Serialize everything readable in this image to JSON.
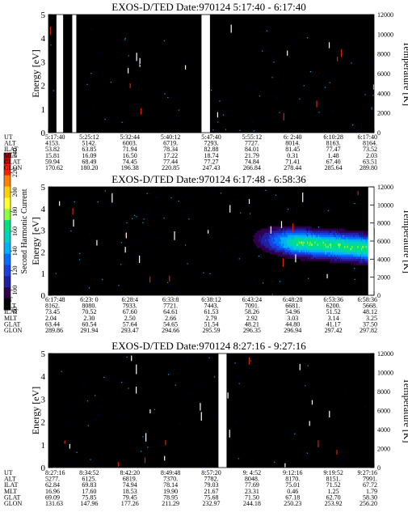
{
  "figure": {
    "colorbar": {
      "label": "Second Harmonic Current",
      "ticks": [
        "240",
        "220",
        "200",
        "180",
        "160",
        "140",
        "120",
        "100",
        "80"
      ],
      "colors": [
        "#c80000",
        "#ff2000",
        "#ff8000",
        "#ffd000",
        "#ffff30",
        "#90ff40",
        "#00e080",
        "#00d0c0",
        "#00b0ff",
        "#0070ff",
        "#1a3fe0",
        "#2020a0",
        "#300050",
        "#000000"
      ]
    }
  },
  "chart_data": [
    {
      "type": "heatmap",
      "title": "EXOS-D/TED",
      "date_text": "Date:970124",
      "time_range": "5:17:40 - 6:17:40",
      "ylabel": "Energy [eV]",
      "ylabel2": "Temperature [K]",
      "ylim": [
        0,
        5
      ],
      "ylim2": [
        0,
        12000
      ],
      "yticks": [
        "0",
        "1",
        "2",
        "3",
        "4",
        "5"
      ],
      "yticks2": [
        "0",
        "2000",
        "4000",
        "6000",
        "8000",
        "10000",
        "12000"
      ],
      "background_level": 75,
      "feature": "none",
      "gaps": [
        [
          0.0245,
          0.045
        ],
        [
          0.073,
          0.0855
        ],
        [
          0.47,
          0.496
        ]
      ],
      "table": {
        "labels": [
          "UT",
          "ALT",
          "ILAT",
          "MLT",
          "GLAT",
          "GLON"
        ],
        "columns": [
          [
            "5:17:40",
            "4153.",
            "53.82",
            "15.81",
            "59.94",
            "170.62"
          ],
          [
            "5:25:12",
            "5142.",
            "63.85",
            "16.09",
            "68.49",
            "180.20"
          ],
          [
            "5:32:44",
            "6003.",
            "71.94",
            "16.50",
            "74.45",
            "196.38"
          ],
          [
            "5:40:12",
            "6719.",
            "78.34",
            "17.22",
            "77.44",
            "220.85"
          ],
          [
            "5:47:40",
            "7293.",
            "82.88",
            "18.74",
            "77.27",
            "247.43"
          ],
          [
            "5:55:12",
            "7727.",
            "84.01",
            "21.79",
            "74.84",
            "266.84"
          ],
          [
            "6: 2:40",
            "8014.",
            "81.45",
            "0.31",
            "71.41",
            "278.44"
          ],
          [
            "6:10:28",
            "8163.",
            "77.47",
            "1.48",
            "67.40",
            "285.64"
          ],
          [
            "6:17:40",
            "8164.",
            "73.52",
            "2.03",
            "63.51",
            "289.80"
          ]
        ]
      }
    },
    {
      "type": "heatmap",
      "title": "EXOS-D/TED",
      "date_text": "Date:970124",
      "time_range": "6:17:48 - 6:58:36",
      "ylabel": "Energy [eV]",
      "ylabel2": "Temperature [K]",
      "ylim": [
        0,
        5
      ],
      "ylim2": [
        0,
        12000
      ],
      "yticks": [
        "0",
        "1",
        "2",
        "3",
        "4",
        "5"
      ],
      "yticks2": [
        "0",
        "2000",
        "4000",
        "6000",
        "8000",
        "10000",
        "12000"
      ],
      "background_level": 75,
      "feature": "band",
      "band": {
        "x_start": 0.6,
        "center_start": 2.6,
        "center_end": 2.1,
        "peak_level": 175
      },
      "gaps": [
        [
          0.982,
          1.0
        ]
      ],
      "table": {
        "labels": [
          "UT",
          "ALT",
          "ILAT",
          "MLT",
          "GLAT",
          "GLON"
        ],
        "columns": [
          [
            "6:17:48",
            "8162.",
            "73.45",
            "2.04",
            "63.44",
            "289.86"
          ],
          [
            "6:23: 0",
            "8080.",
            "70.52",
            "2.30",
            "60.54",
            "291.94"
          ],
          [
            "6:28:4",
            "7933.",
            "67.60",
            "2.50",
            "57.64",
            "293.47"
          ],
          [
            "6:33:8",
            "7721.",
            "64.61",
            "2.66",
            "54.65",
            "294.66"
          ],
          [
            "6:38:12",
            "7443.",
            "61.53",
            "2.79",
            "51.54",
            "295.59"
          ],
          [
            "6:43:24",
            "7091.",
            "58.26",
            "2.92",
            "48.21",
            "296.35"
          ],
          [
            "6:48:28",
            "6681.",
            "54.96",
            "3.03",
            "44.80",
            "296.94"
          ],
          [
            "6:53:36",
            "6200.",
            "51.52",
            "3.14",
            "41.17",
            "297.42"
          ],
          [
            "6:58:36",
            "5668.",
            "48.12",
            "3.25",
            "37.50",
            "297.82"
          ]
        ]
      }
    },
    {
      "type": "heatmap",
      "title": "EXOS-D/TED",
      "date_text": "Date:970124",
      "time_range": "8:27:16 - 9:27:16",
      "ylabel": "Energy [eV]",
      "ylabel2": "Temperature [K]",
      "ylim": [
        0,
        5
      ],
      "ylim2": [
        0,
        12000
      ],
      "yticks": [
        "0",
        "1",
        "2",
        "3",
        "4",
        "5"
      ],
      "yticks2": [
        "0",
        "2000",
        "4000",
        "6000",
        "8000",
        "10000",
        "12000"
      ],
      "background_level": 75,
      "feature": "none",
      "gaps": [
        [
          0.522,
          0.547
        ]
      ],
      "table": {
        "labels": [
          "UT",
          "ALT",
          "ILAT",
          "MLT",
          "GLAT",
          "GLON"
        ],
        "columns": [
          [
            "8:27:16",
            "5277.",
            "62.84",
            "16.96",
            "69.09",
            "131.63"
          ],
          [
            "8:34:52",
            "6125.",
            "69.83",
            "17.60",
            "75.85",
            "147.96"
          ],
          [
            "8:42:20",
            "6819.",
            "74.94",
            "18.53",
            "79.45",
            "177.26"
          ],
          [
            "8:49:48",
            "7370.",
            "78.14",
            "19.90",
            "78.95",
            "211.29"
          ],
          [
            "8:57:20",
            "7782.",
            "79.03",
            "21.67",
            "75.68",
            "232.97"
          ],
          [
            "9: 4:52",
            "8048.",
            "77.69",
            "23.31",
            "71.50",
            "244.18"
          ],
          [
            "9:12:16",
            "8170.",
            "75.01",
            "0.46",
            "67.18",
            "250.23"
          ],
          [
            "9:19:52",
            "8151.",
            "71.52",
            "1.25",
            "62.70",
            "253.92"
          ],
          [
            "9:27:16",
            "7991.",
            "67.72",
            "1.79",
            "58.30",
            "256.20"
          ]
        ]
      }
    }
  ]
}
